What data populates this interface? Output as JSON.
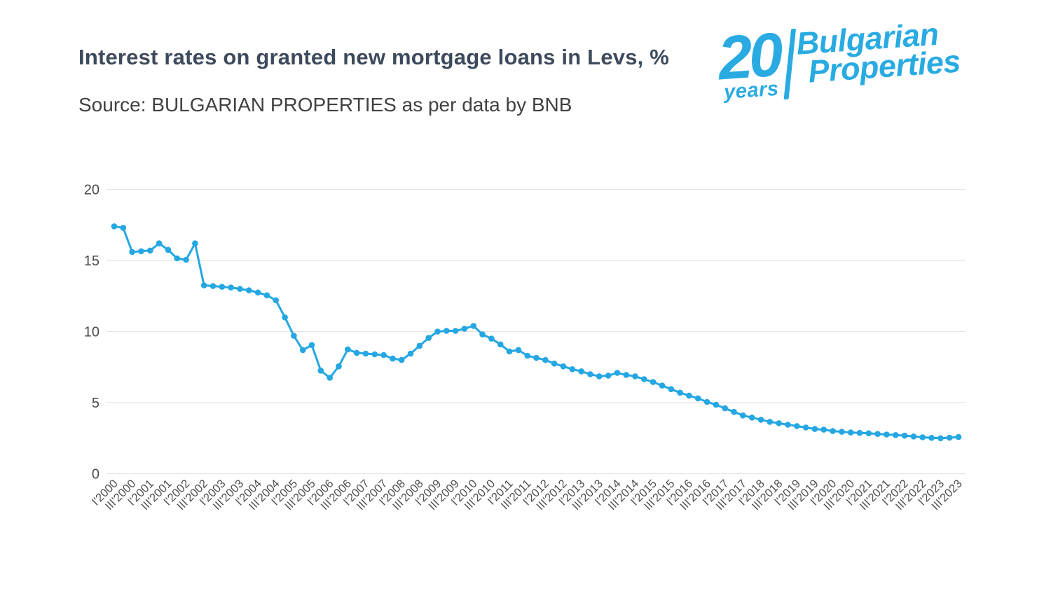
{
  "header": {
    "title": "Interest rates on granted new mortgage loans in Levs, %",
    "source": "Source: BULGARIAN PROPERTIES as per data by BNB"
  },
  "logo": {
    "number": "20",
    "years_label": "years",
    "brand_line1": "Bulgarian",
    "brand_line2": "Properties",
    "color": "#29abe2"
  },
  "colors": {
    "line": "#24a7e2",
    "logo_blue": "#29abe2",
    "title_text": "#3d4a5c",
    "subtitle_text": "#414141",
    "y_tick_text": "#4a4a4a",
    "x_tick_text": "#4f4f4f",
    "gridline": "#e4e4e4",
    "background": "#ffffff"
  },
  "chart_data": {
    "type": "line",
    "title": "Interest rates on granted new mortgage loans in Levs, %",
    "xlabel": "",
    "ylabel": "",
    "ylim": [
      0,
      20
    ],
    "y_ticks": [
      0,
      5,
      10,
      15,
      20
    ],
    "grid": "horizontal",
    "legend_position": "none",
    "marker": "circle",
    "line_color": "#24a7e2",
    "points_per_tick": 2,
    "x_tick_labels": [
      "I'2000",
      "III'2000",
      "I'2001",
      "III'2001",
      "I'2002",
      "III'2002",
      "I'2003",
      "III'2003",
      "I'2004",
      "III'2004",
      "I'2005",
      "III'2005",
      "I'2006",
      "III'2006",
      "I'2007",
      "III'2007",
      "I'2008",
      "III'2008",
      "I'2009",
      "III'2009",
      "I'2010",
      "III'2010",
      "I'2011",
      "III'2011",
      "I'2012",
      "III'2012",
      "I'2013",
      "III'2013",
      "I'2014",
      "III'2014",
      "I'2015",
      "III'2015",
      "I'2016",
      "III'2016",
      "I'2017",
      "III'2017",
      "I'2018",
      "III'2018",
      "I'2019",
      "III'2019",
      "I'2020",
      "III'2020",
      "I'2021",
      "III'2021",
      "I'2022",
      "III'2022",
      "I'2023",
      "III'2023"
    ],
    "values": [
      17.4,
      17.3,
      15.6,
      15.65,
      15.7,
      16.2,
      15.75,
      15.15,
      15.05,
      16.2,
      13.25,
      13.2,
      13.15,
      13.1,
      13.0,
      12.9,
      12.75,
      12.55,
      12.2,
      11.0,
      9.7,
      8.7,
      9.05,
      7.25,
      6.75,
      7.55,
      8.75,
      8.5,
      8.45,
      8.4,
      8.35,
      8.1,
      8.0,
      8.45,
      9.0,
      9.55,
      10.0,
      10.05,
      10.05,
      10.2,
      10.4,
      9.8,
      9.5,
      9.1,
      8.6,
      8.7,
      8.3,
      8.15,
      8.0,
      7.75,
      7.55,
      7.35,
      7.2,
      7.0,
      6.85,
      6.9,
      7.1,
      6.95,
      6.85,
      6.65,
      6.45,
      6.2,
      5.95,
      5.7,
      5.5,
      5.3,
      5.05,
      4.85,
      4.6,
      4.35,
      4.1,
      3.95,
      3.8,
      3.65,
      3.55,
      3.45,
      3.35,
      3.25,
      3.15,
      3.1,
      3.0,
      2.95,
      2.9,
      2.87,
      2.84,
      2.8,
      2.76,
      2.72,
      2.68,
      2.62,
      2.56,
      2.52,
      2.5,
      2.53,
      2.58
    ]
  }
}
